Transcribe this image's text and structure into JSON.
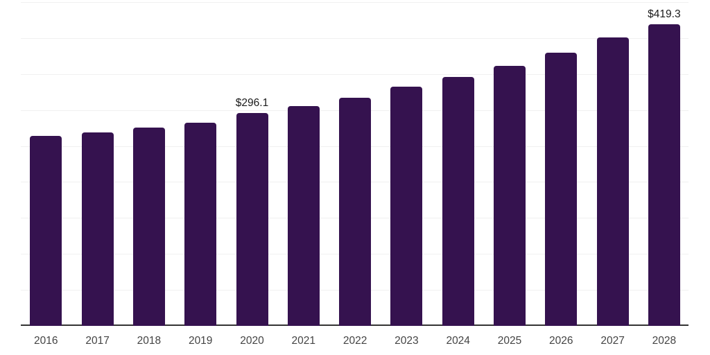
{
  "chart_data": {
    "type": "bar",
    "title": "",
    "xlabel": "",
    "ylabel": "",
    "categories": [
      "2016",
      "2017",
      "2018",
      "2019",
      "2020",
      "2021",
      "2022",
      "2023",
      "2024",
      "2025",
      "2026",
      "2027",
      "2028"
    ],
    "values": [
      263.7,
      268.5,
      275.2,
      281.9,
      296.1,
      305.0,
      317.4,
      332.3,
      346.2,
      361.5,
      379.8,
      400.9,
      419.3
    ],
    "data_labels": [
      {
        "category": "2020",
        "text": "$296.1"
      },
      {
        "category": "2028",
        "text": "$419.3"
      }
    ],
    "ylim": [
      0,
      450
    ],
    "gridline_step": 50,
    "grid": true,
    "legend": false,
    "y_axis_labels_visible": false,
    "colors": {
      "bar": "#35124f",
      "data_label": "#1a1a1a",
      "tick_label": "#444444",
      "gridline": "#f0f0f0",
      "axis_line": "#333333",
      "background": "#ffffff"
    }
  }
}
